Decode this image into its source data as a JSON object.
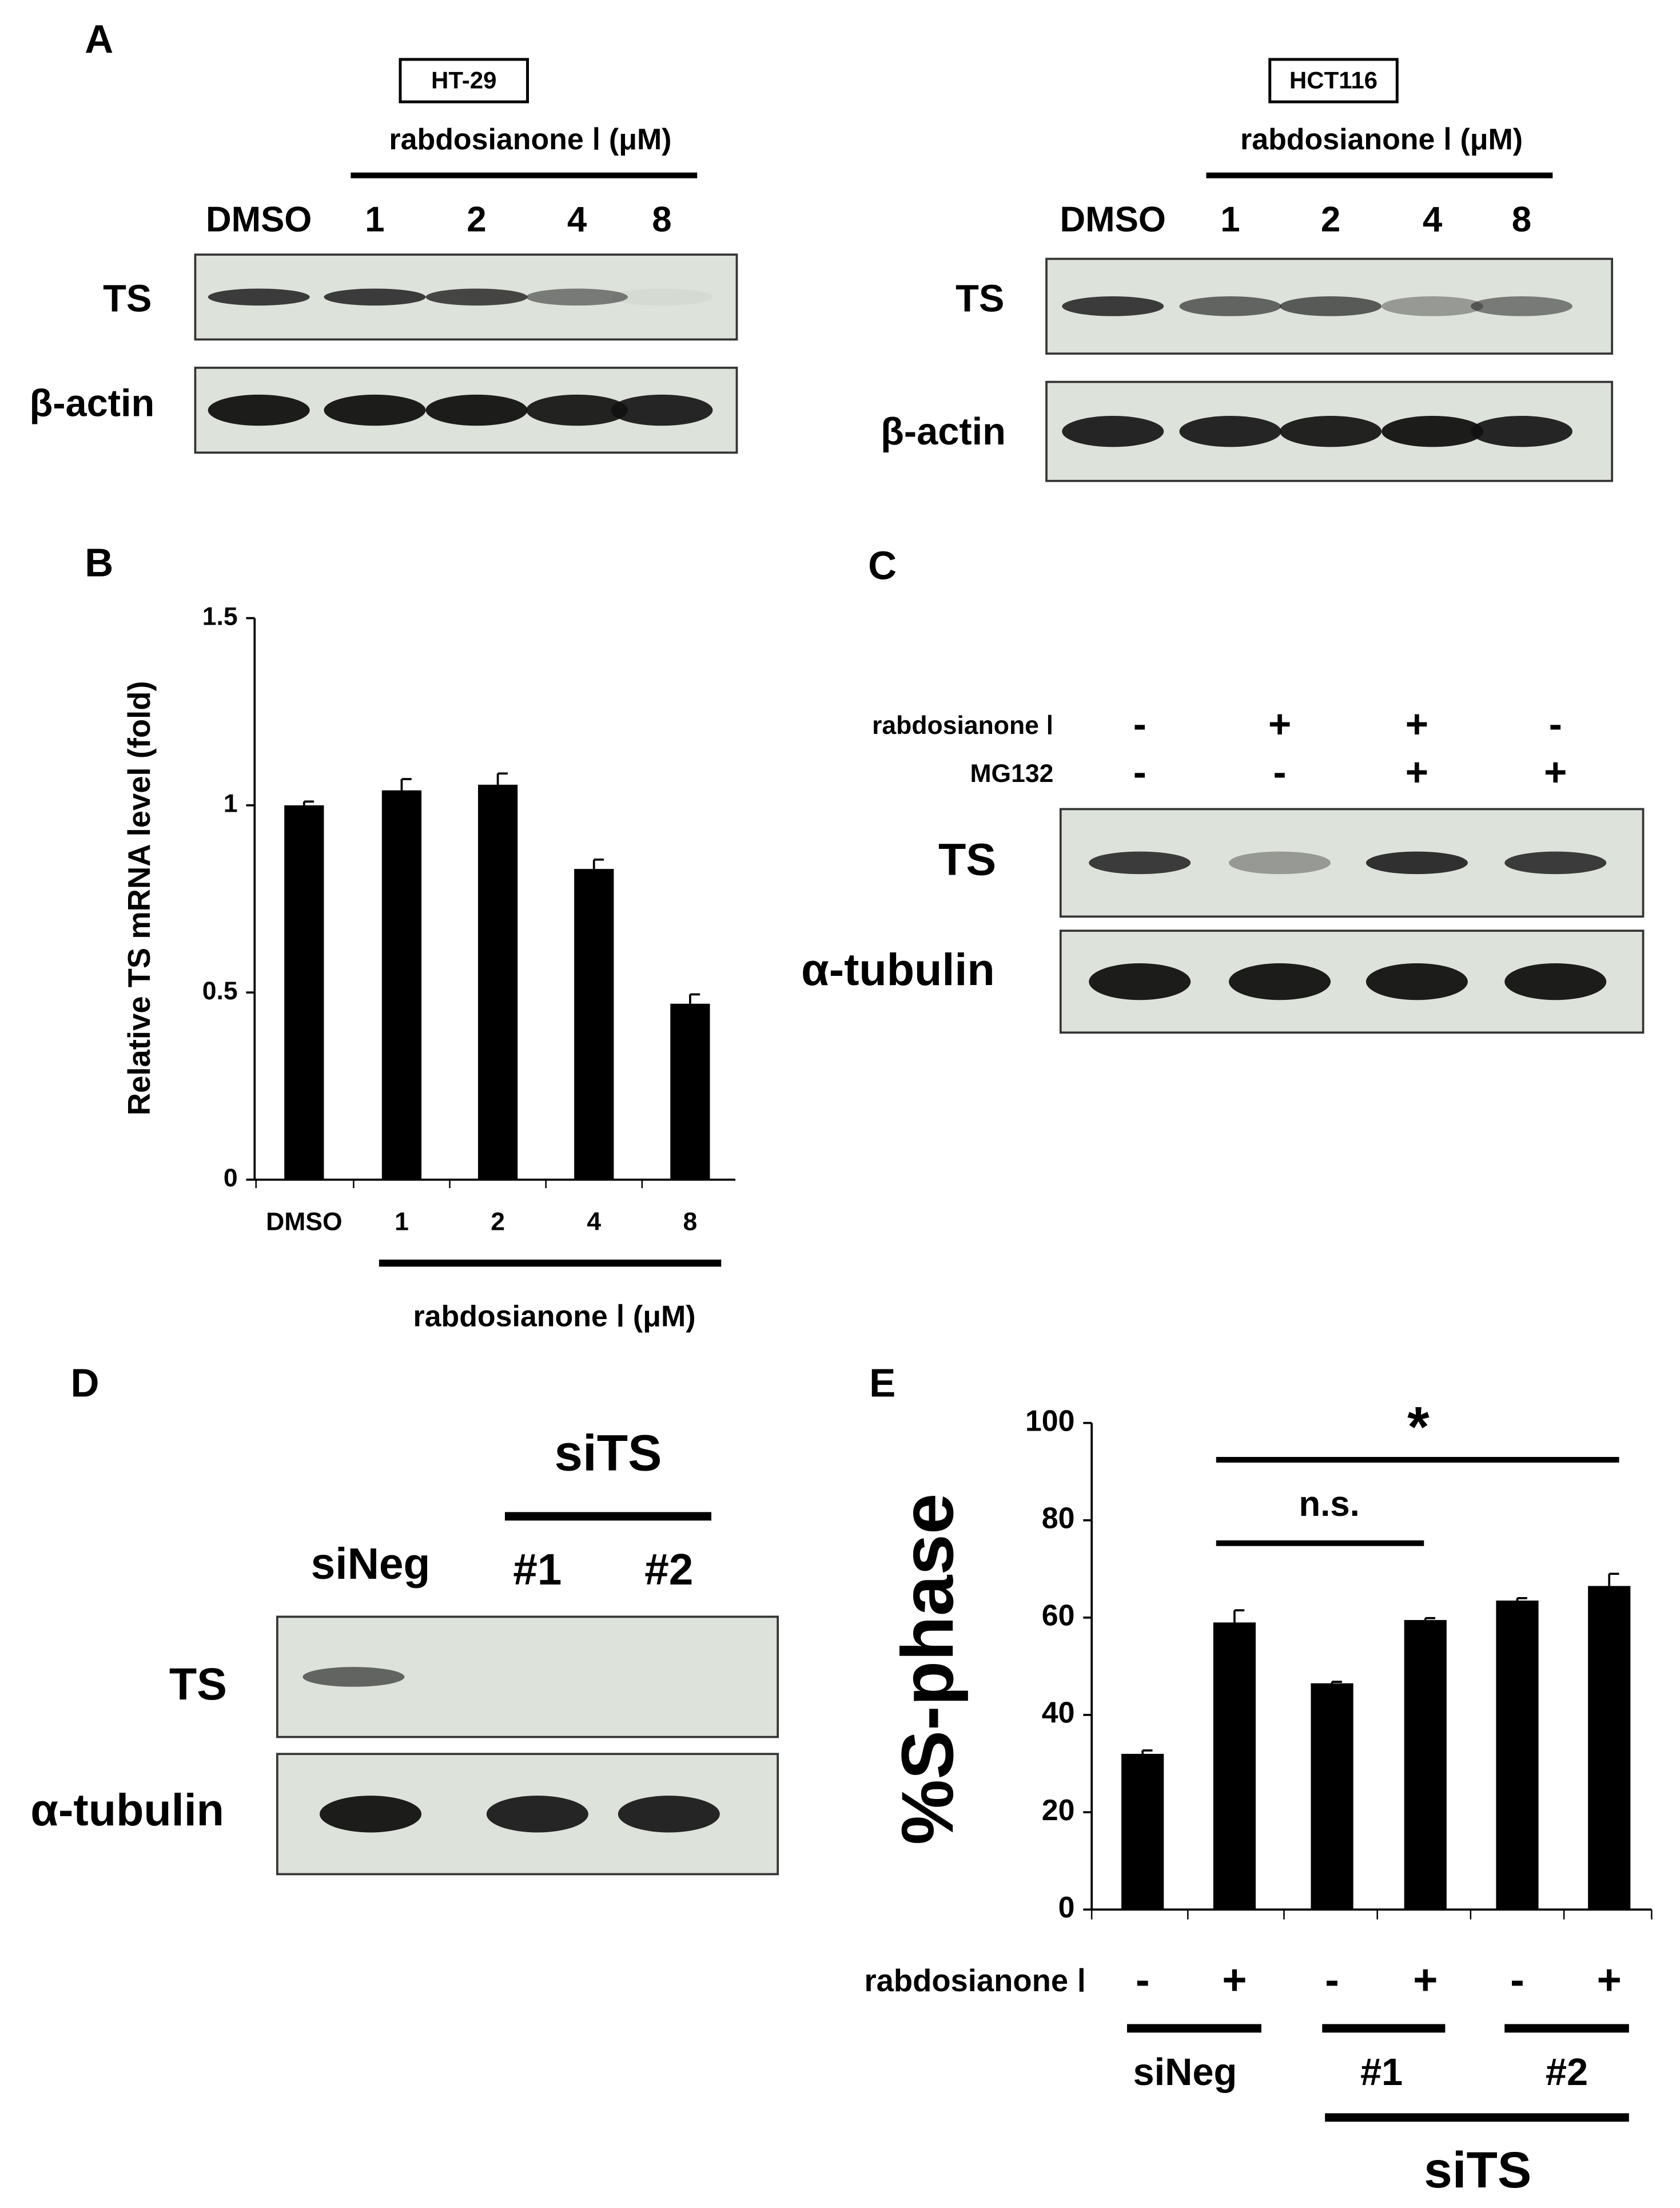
{
  "panel_labels": [
    "A",
    "B",
    "C",
    "D",
    "E"
  ],
  "panel_a": {
    "left": {
      "cell_line": "HT-29",
      "treatment": "rabdosianone Ⅰ (μM)",
      "lanes": [
        "DMSO",
        "1",
        "2",
        "4",
        "8"
      ],
      "rows": [
        "TS",
        "β-actin"
      ]
    },
    "right": {
      "cell_line": "HCT116",
      "treatment": "rabdosianone Ⅰ (μM)",
      "lanes": [
        "DMSO",
        "1",
        "2",
        "4",
        "8"
      ],
      "rows": [
        "TS",
        "β-actin"
      ]
    }
  },
  "panel_c": {
    "treatments": [
      "rabdosianone Ⅰ",
      "MG132"
    ],
    "signs": [
      [
        "-",
        "+",
        "+",
        "-"
      ],
      [
        "-",
        "-",
        "+",
        "+"
      ]
    ],
    "rows": [
      "TS",
      "α-tubulin"
    ]
  },
  "panel_d": {
    "group": "siTS",
    "lanes": [
      "siNeg",
      "#1",
      "#2"
    ],
    "rows": [
      "TS",
      "α-tubulin"
    ]
  },
  "chart_data": [
    {
      "type": "bar",
      "y_label": "Relative TS mRNA level (fold)",
      "categories": [
        "DMSO",
        "1",
        "2",
        "4",
        "8"
      ],
      "values": [
        1.0,
        1.04,
        1.055,
        0.83,
        0.47
      ],
      "errors": [
        0.01,
        0.03,
        0.03,
        0.025,
        0.025
      ],
      "color": "#000000",
      "ylim": [
        0,
        1.5
      ],
      "yticks": [
        0,
        0.5,
        1,
        1.5
      ],
      "group_label": "rabdosianone Ⅰ (μM)"
    },
    {
      "type": "bar",
      "y_label": "%S-phase",
      "categories": [
        "-",
        "+",
        "-",
        "+",
        "-",
        "+"
      ],
      "values": [
        32,
        59,
        46.5,
        59.5,
        63.5,
        66.5
      ],
      "errors": [
        0.7,
        2.5,
        0.3,
        0.4,
        0.5,
        2.5
      ],
      "color": "#000000",
      "ylim": [
        0,
        100
      ],
      "yticks": [
        0,
        20,
        40,
        60,
        80,
        100
      ],
      "row_label": "rabdosianone Ⅰ",
      "groups": [
        "siNeg",
        "#1",
        "#2"
      ],
      "supergroup": "siTS",
      "annotations": [
        "n.s.",
        "*"
      ]
    }
  ]
}
